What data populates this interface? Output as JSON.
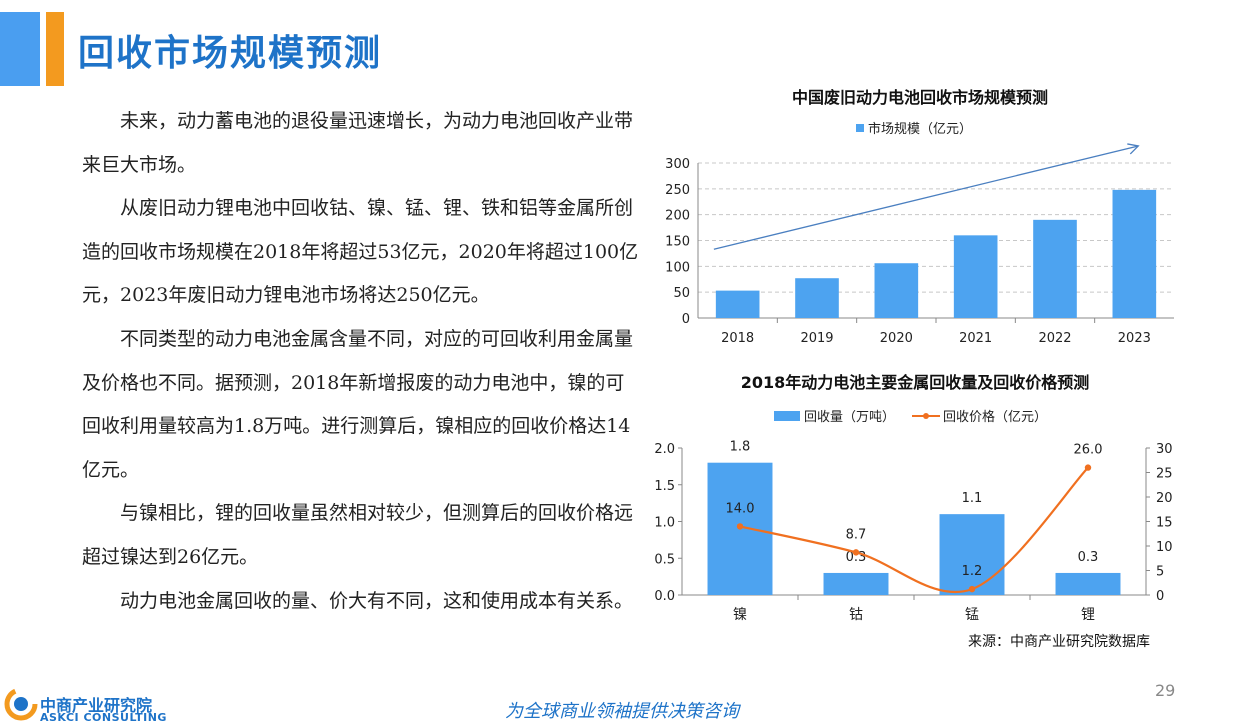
{
  "page": {
    "title": "回收市场规模预测",
    "paragraphs": [
      "未来，动力蓄电池的退役量迅速增长，为动力电池回收产业带来巨大市场。",
      "从废旧动力锂电池中回收钴、镍、锰、锂、铁和铝等金属所创造的回收市场规模在2018年将超过53亿元，2020年将超过100亿元，2023年废旧动力锂电池市场将达250亿元。",
      "不同类型的动力电池金属含量不同，对应的可回收利用金属量及价格也不同。据预测，2018年新增报废的动力电池中，镍的可回收利用量较高为1.8万吨。进行测算后，镍相应的回收价格达14亿元。",
      "与镍相比，锂的回收量虽然相对较少，但测算后的回收价格远超过镍达到26亿元。",
      "动力电池金属回收的量、价大有不同，这和使用成本有关系。"
    ],
    "source": "来源：中商产业研究院数据库",
    "page_number": "29",
    "logo_cn": "中商产业研究院",
    "logo_en": "ASKCI CONSULTING",
    "slogan": "为全球商业领袖提供决策咨询"
  },
  "colors": {
    "accent_blue": "#4a9ef0",
    "accent_orange": "#f39a1f",
    "title_blue": "#1e73c8",
    "bar_blue": "#4da3f0",
    "line_orange": "#f07020"
  },
  "chart_data": [
    {
      "type": "bar",
      "title": "中国废旧动力电池回收市场规模预测",
      "categories": [
        "2018",
        "2019",
        "2020",
        "2021",
        "2022",
        "2023"
      ],
      "series": [
        {
          "name": "市场规模（亿元）",
          "values": [
            53,
            77,
            106,
            160,
            190,
            248
          ]
        }
      ],
      "ylim": [
        0,
        300
      ],
      "yticks": [
        0,
        50,
        100,
        150,
        200,
        250,
        300
      ],
      "grid": true,
      "legend": "top",
      "annotations": [
        "trend-arrow"
      ]
    },
    {
      "type": "bar",
      "title": "2018年动力电池主要金属回收量及回收价格预测",
      "categories": [
        "镍",
        "钴",
        "锰",
        "锂"
      ],
      "series": [
        {
          "name": "回收量（万吨）",
          "type": "bar",
          "axis": "left",
          "values": [
            1.8,
            0.3,
            1.1,
            0.3
          ],
          "labels": [
            "1.8",
            "0.3",
            "1.1",
            "0.3"
          ]
        },
        {
          "name": "回收价格（亿元）",
          "type": "line",
          "axis": "right",
          "values": [
            14.0,
            8.7,
            1.2,
            26.0
          ],
          "labels": [
            "14.0",
            "8.7",
            "1.2",
            "26.0"
          ]
        }
      ],
      "ylim": [
        0,
        2.0
      ],
      "yticks": [
        "0.0",
        "0.5",
        "1.0",
        "1.5",
        "2.0"
      ],
      "y2lim": [
        0,
        30
      ],
      "y2ticks": [
        "0",
        "5",
        "10",
        "15",
        "20",
        "25",
        "30"
      ],
      "grid": false,
      "legend": "top"
    }
  ]
}
